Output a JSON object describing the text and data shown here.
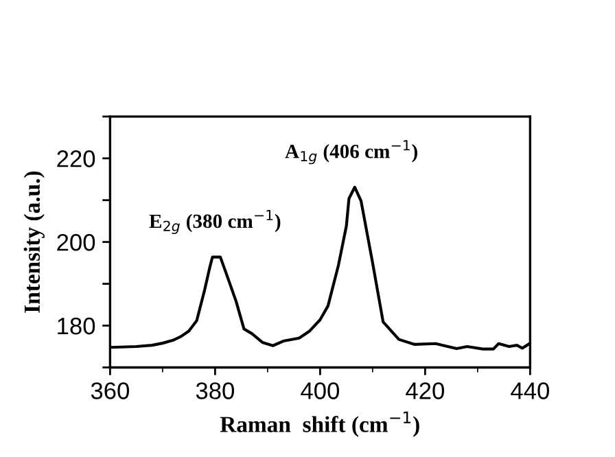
{
  "chart_data": {
    "type": "line",
    "xlabel": "Raman  shift (cm$^{−1}$)",
    "ylabel": "Intensity (a.u.)",
    "xlim": [
      360,
      440
    ],
    "xticks": [
      360,
      380,
      400,
      420,
      440
    ],
    "ylim": [
      170,
      230
    ],
    "yticks": [
      {
        "value": 170,
        "label": null
      },
      180,
      {
        "value": 190,
        "label": null
      },
      200,
      {
        "value": 210,
        "label": null
      },
      220,
      {
        "value": 230,
        "label": null
      }
    ],
    "grid": false,
    "legend": false,
    "marker": "none",
    "line_style": "solid",
    "annotations": [
      {
        "text": "E$_{2g}$ (380 cm$^{−1}$)",
        "x": 380,
        "y": 196.4
      },
      {
        "text": "A$_{1g}$ (406 cm$^{−1}$)",
        "x": 406,
        "y": 213.1
      }
    ],
    "series": [
      {
        "color": "#000000",
        "x": [
          360,
          365,
          368,
          370,
          372,
          373.5,
          375,
          376.5,
          378,
          379,
          379.5,
          381,
          382,
          384,
          385.5,
          387,
          389,
          391,
          393,
          396,
          398,
          400,
          401.5,
          403.5,
          405,
          405.5,
          406.6,
          407.8,
          410,
          412,
          415,
          418,
          422,
          426,
          428,
          431,
          433,
          434,
          436,
          437.5,
          438.5,
          440
        ],
        "values": [
          174.8,
          175.0,
          175.3,
          175.8,
          176.5,
          177.4,
          178.7,
          181.2,
          188.5,
          194,
          196.4,
          196.4,
          192.9,
          185.8,
          179.2,
          178.1,
          176,
          175.2,
          176.3,
          177,
          178.7,
          181.4,
          184.7,
          194.5,
          203.8,
          210.4,
          213.1,
          209.8,
          195,
          180.9,
          176.7,
          175.5,
          175.7,
          174.5,
          175,
          174.4,
          174.4,
          175.7,
          175,
          175.3,
          174.6,
          175.8
        ]
      }
    ]
  }
}
